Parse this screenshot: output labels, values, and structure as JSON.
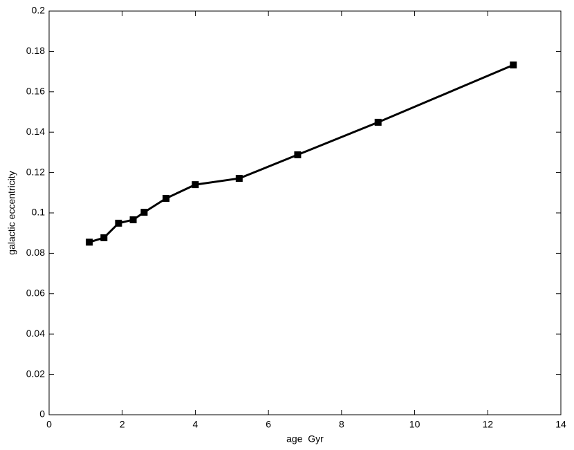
{
  "chart_data": {
    "type": "line",
    "xlabel": "age  Gyr",
    "ylabel": "galactic eccentricity",
    "x": [
      1.1,
      1.5,
      1.9,
      2.3,
      2.6,
      3.2,
      4.0,
      5.2,
      6.8,
      9.0,
      12.7
    ],
    "series": [
      {
        "color": "#000000",
        "values": [
          0.0855,
          0.0877,
          0.0949,
          0.0966,
          0.1003,
          0.1072,
          0.114,
          0.1171,
          0.1288,
          0.1449,
          0.1733
        ]
      }
    ],
    "xlim": [
      0,
      14
    ],
    "xticks": [
      0,
      2,
      4,
      6,
      8,
      10,
      12,
      14
    ],
    "ylim": [
      0,
      0.2
    ],
    "yticks": [
      0,
      0.02,
      0.04,
      0.06,
      0.08,
      0.1,
      0.12,
      0.14,
      0.16,
      0.18,
      0.2
    ],
    "grid": false
  }
}
